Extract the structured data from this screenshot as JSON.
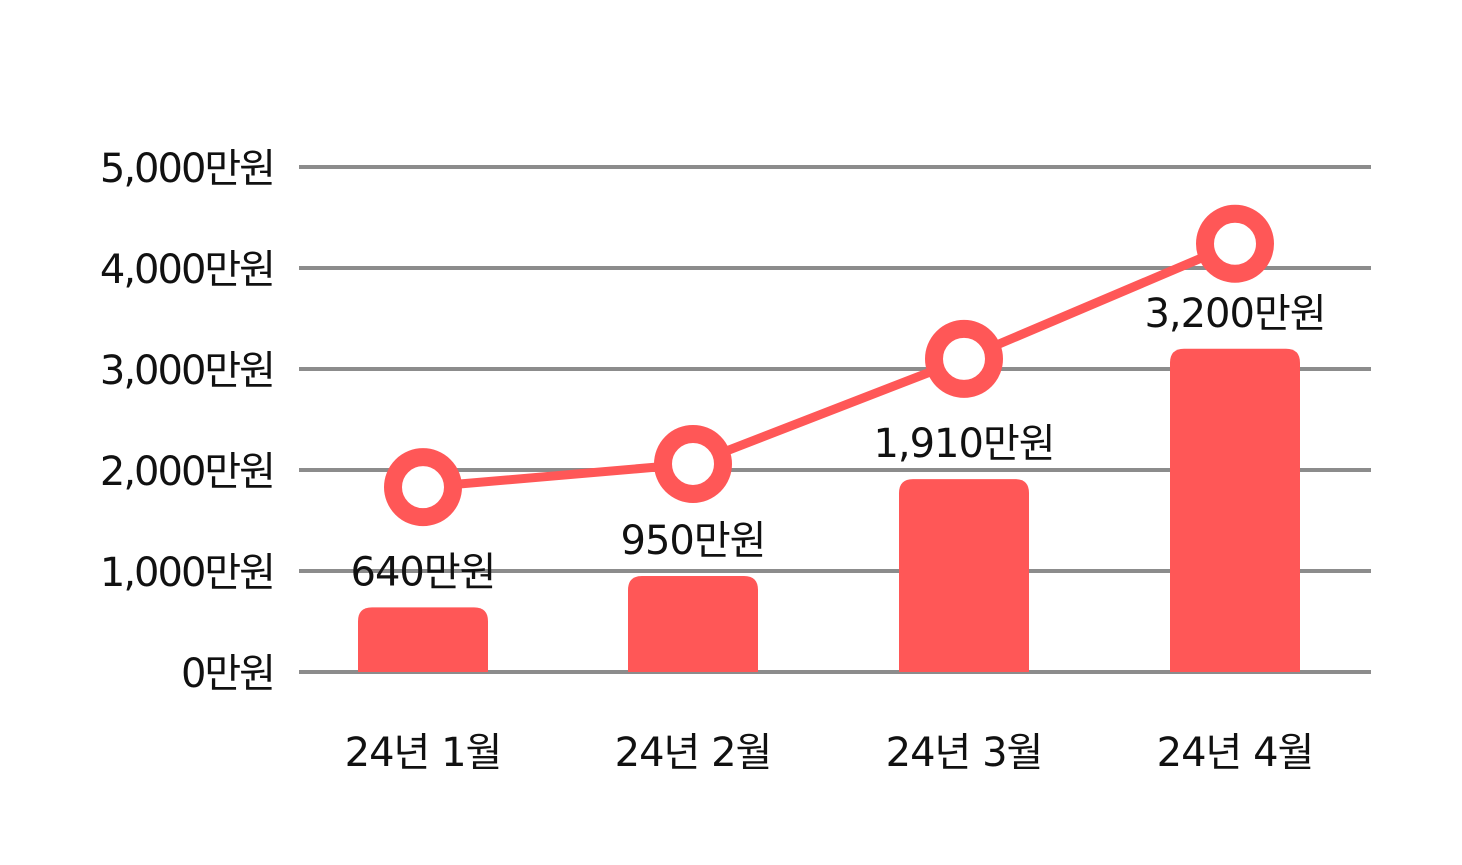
{
  "chart_data": {
    "type": "bar",
    "categories": [
      "24년 1월",
      "24년 2월",
      "24년 3월",
      "24년 4월"
    ],
    "series": [
      {
        "type": "bar",
        "values": [
          640,
          950,
          1910,
          3200
        ],
        "labels": [
          "640만원",
          "950만원",
          "1,910만원",
          "3,200만원"
        ],
        "color": "#FF5757"
      },
      {
        "type": "line",
        "values": [
          1830,
          2060,
          3100,
          4240
        ],
        "color": "#FF5757",
        "marker": "hollow-circle"
      }
    ],
    "y_ticks": [
      {
        "value": 0,
        "label": "0만원"
      },
      {
        "value": 1000,
        "label": "1,000만원"
      },
      {
        "value": 2000,
        "label": "2,000만원"
      },
      {
        "value": 3000,
        "label": "3,000만원"
      },
      {
        "value": 4000,
        "label": "4,000만원"
      },
      {
        "value": 5000,
        "label": "5,000만원"
      }
    ],
    "ylim": [
      0,
      5000
    ],
    "grid": true,
    "legend": "none",
    "title": "",
    "xlabel": "",
    "ylabel": ""
  }
}
